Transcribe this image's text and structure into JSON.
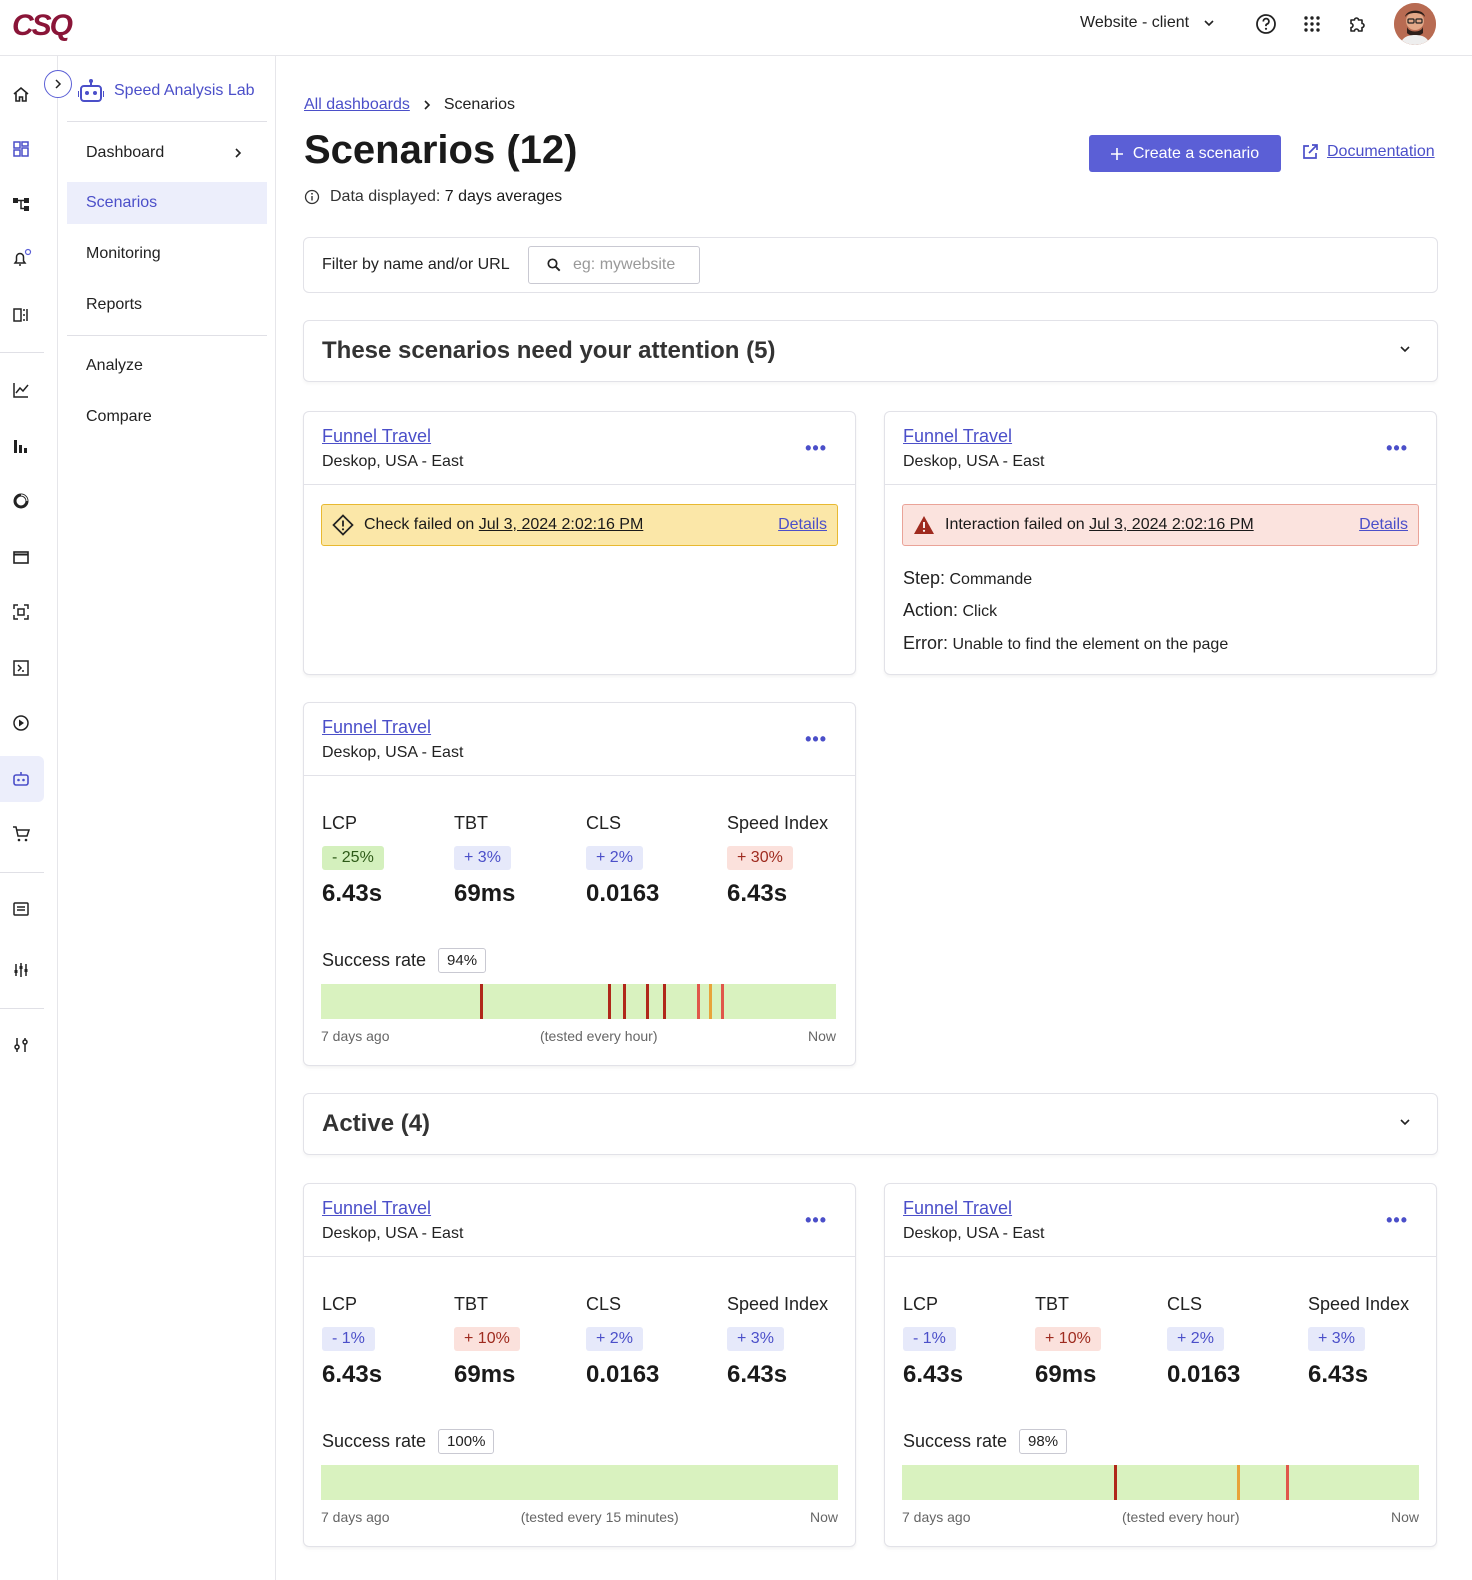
{
  "topbar": {
    "logo": "CSQ",
    "site_select": "Website - client",
    "icons": [
      "help-icon",
      "apps-grid-icon",
      "puzzle-icon",
      "avatar"
    ]
  },
  "subnav": {
    "title": "Speed Analysis Lab",
    "items": [
      {
        "label": "Dashboard"
      },
      {
        "label": "Scenarios"
      },
      {
        "label": "Monitoring"
      },
      {
        "label": "Reports"
      },
      {
        "label": "Analyze"
      },
      {
        "label": "Compare"
      }
    ]
  },
  "breadcrumb": {
    "link": "All dashboards",
    "current": "Scenarios"
  },
  "page": {
    "title": "Scenarios (12)",
    "data_info_label": "Data displayed:",
    "data_info_value": "7 days averages",
    "create_button": "Create a scenario",
    "doc_link": "Documentation"
  },
  "filter": {
    "label": "Filter by name and/or URL",
    "placeholder": "eg: mywebsite"
  },
  "sections": {
    "attention": "These scenarios need your attention (5)",
    "active": "Active (4)"
  },
  "colors": {
    "accent": "#5b5fd6",
    "link": "#4b4fc9",
    "bar_bg": "#d9f2bf",
    "tick_red": "#b0281a",
    "tick_orange": "#e8a33a"
  },
  "cards": [
    {
      "title": "Funnel Travel",
      "subtitle": "Deskop, USA - East",
      "more": "•••",
      "alert": {
        "type": "warn",
        "prefix": "Check failed on",
        "date": "Jul 3, 2024 2:02:16 PM",
        "details": "Details"
      }
    },
    {
      "title": "Funnel Travel",
      "subtitle": "Deskop, USA - East",
      "more": "•••",
      "alert": {
        "type": "err",
        "prefix": "Interaction failed on",
        "date": "Jul 3, 2024 2:02:16 PM",
        "details": "Details"
      },
      "error": {
        "step_label": "Step:",
        "step": "Commande",
        "action_label": "Action:",
        "action": "Click",
        "error_label": "Error:",
        "error": "Unable to find the element on the page"
      }
    },
    {
      "title": "Funnel Travel",
      "subtitle": "Deskop, USA - East",
      "more": "•••",
      "metrics": [
        {
          "label": "LCP",
          "delta": "- 25%",
          "value": "6.43s"
        },
        {
          "label": "TBT",
          "delta": "+ 3%",
          "value": "69ms"
        },
        {
          "label": "CLS",
          "delta": "+ 2%",
          "value": "0.0163"
        },
        {
          "label": "Speed Index",
          "delta": "+ 30%",
          "value": "6.43s"
        }
      ],
      "success_label": "Success rate",
      "success_rate": "94%",
      "bar": {
        "start": "7 days ago",
        "middle": "(tested every hour)",
        "end": "Now"
      }
    },
    {
      "title": "Funnel Travel",
      "subtitle": "Deskop, USA - East",
      "more": "•••",
      "metrics": [
        {
          "label": "LCP",
          "delta": "- 1%",
          "value": "6.43s"
        },
        {
          "label": "TBT",
          "delta": "+ 10%",
          "value": "69ms"
        },
        {
          "label": "CLS",
          "delta": "+ 2%",
          "value": "0.0163"
        },
        {
          "label": "Speed Index",
          "delta": "+ 3%",
          "value": "6.43s"
        }
      ],
      "success_label": "Success rate",
      "success_rate": "100%",
      "bar": {
        "start": "7 days ago",
        "middle": "(tested every 15 minutes)",
        "end": "Now"
      }
    },
    {
      "title": "Funnel Travel",
      "subtitle": "Deskop, USA - East",
      "more": "•••",
      "metrics": [
        {
          "label": "LCP",
          "delta": "- 1%",
          "value": "6.43s"
        },
        {
          "label": "TBT",
          "delta": "+ 10%",
          "value": "69ms"
        },
        {
          "label": "CLS",
          "delta": "+ 2%",
          "value": "0.0163"
        },
        {
          "label": "Speed Index",
          "delta": "+ 3%",
          "value": "6.43s"
        }
      ],
      "success_label": "Success rate",
      "success_rate": "98%",
      "bar": {
        "start": "7 days ago",
        "middle": "(tested every hour)",
        "end": "Now"
      }
    }
  ]
}
